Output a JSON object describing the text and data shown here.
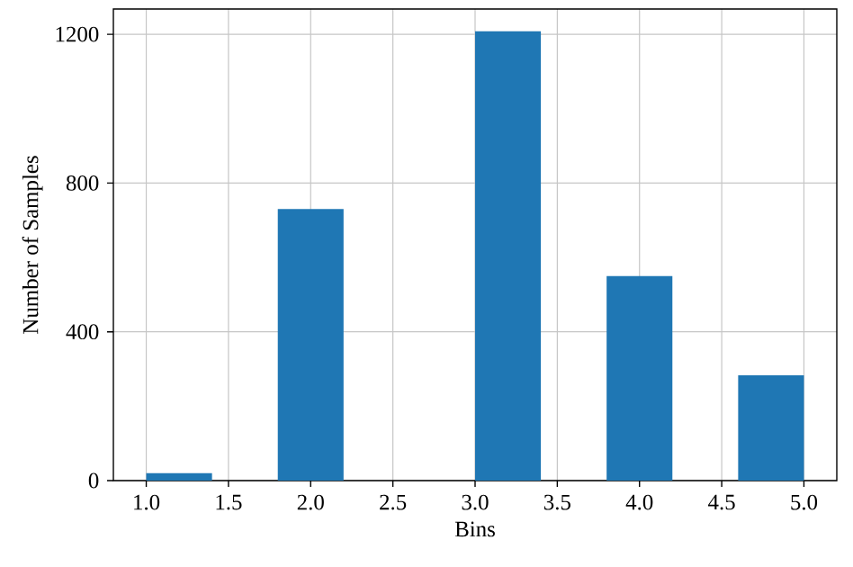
{
  "chart_data": {
    "type": "histogram",
    "xlabel": "Bins",
    "ylabel": "Number of Samples",
    "bins": [
      1.0,
      1.4,
      1.8,
      2.2,
      2.6,
      3.0,
      3.4,
      3.8,
      4.2,
      4.6,
      5.0
    ],
    "values": [
      20,
      0,
      730,
      0,
      0,
      1208,
      0,
      550,
      0,
      283
    ],
    "color": "#1f77b4",
    "xlim": [
      0.8,
      5.2
    ],
    "ylim": [
      0,
      1268
    ],
    "xticks": [
      {
        "value": 1.0,
        "label": "1.0"
      },
      {
        "value": 1.5,
        "label": "1.5"
      },
      {
        "value": 2.0,
        "label": "2.0"
      },
      {
        "value": 2.5,
        "label": "2.5"
      },
      {
        "value": 3.0,
        "label": "3.0"
      },
      {
        "value": 3.5,
        "label": "3.5"
      },
      {
        "value": 4.0,
        "label": "4.0"
      },
      {
        "value": 4.5,
        "label": "4.5"
      },
      {
        "value": 5.0,
        "label": "5.0"
      }
    ],
    "yticks": [
      0,
      400,
      800,
      1200
    ],
    "grid": true
  }
}
